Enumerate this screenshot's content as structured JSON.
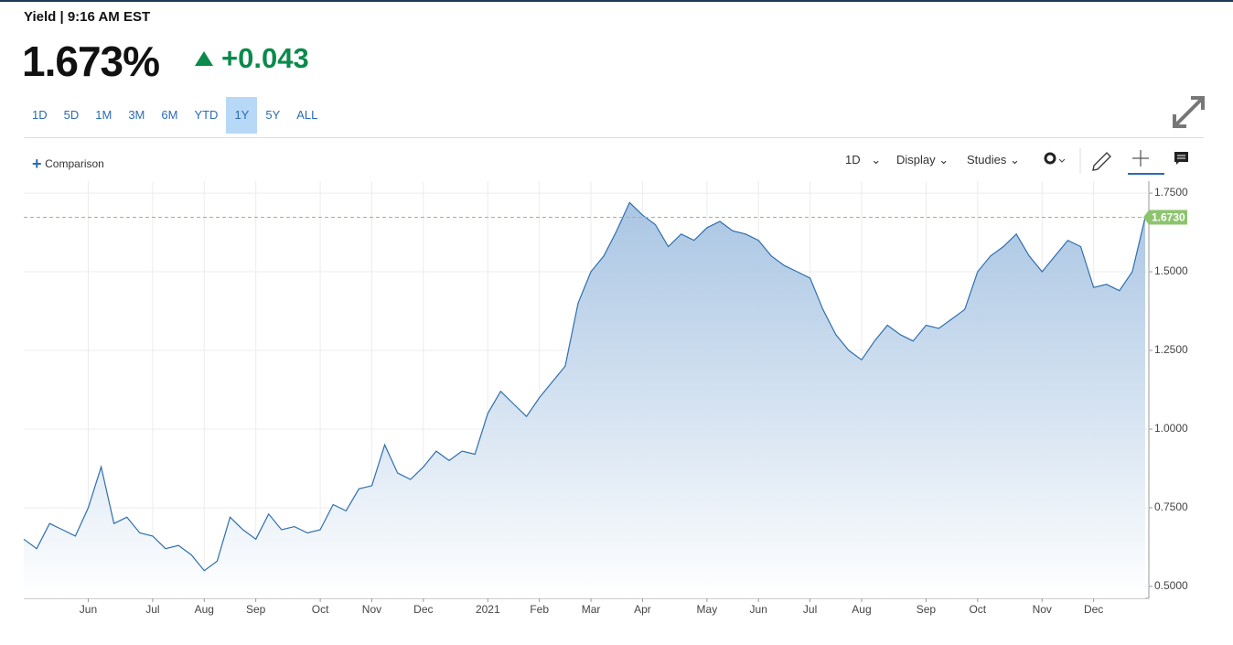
{
  "header": {
    "title": "Yield | 9:16 AM EST",
    "price": "1.673%",
    "change": "+0.043"
  },
  "ranges": [
    "1D",
    "5D",
    "1M",
    "3M",
    "6M",
    "YTD",
    "1Y",
    "5Y",
    "ALL"
  ],
  "active_range": "1Y",
  "toolbar": {
    "comparison": "Comparison",
    "interval": "1D",
    "display": "Display",
    "studies": "Studies"
  },
  "chart_data": {
    "type": "area",
    "color": "#2e6fae",
    "fill_color": "#a6c3e2",
    "categories": [
      null,
      null,
      null,
      null,
      null,
      "Jun",
      null,
      null,
      null,
      null,
      "Jul",
      null,
      null,
      null,
      "Aug",
      null,
      null,
      null,
      "Sep",
      null,
      null,
      null,
      null,
      "Oct",
      null,
      null,
      null,
      "Nov",
      null,
      null,
      null,
      "Dec",
      null,
      null,
      null,
      null,
      "2021",
      null,
      null,
      null,
      "Feb",
      null,
      null,
      null,
      "Mar",
      null,
      null,
      null,
      "Apr",
      null,
      null,
      null,
      null,
      "May",
      null,
      null,
      null,
      "Jun",
      null,
      null,
      null,
      "Jul",
      null,
      null,
      null,
      "Aug",
      null,
      null,
      null,
      null,
      "Sep",
      null,
      null,
      null,
      "Oct",
      null,
      null,
      null,
      null,
      "Nov",
      null,
      null,
      null,
      "Dec",
      null,
      null,
      null,
      null
    ],
    "values": [
      0.65,
      0.62,
      0.7,
      0.68,
      0.66,
      0.75,
      0.88,
      0.7,
      0.72,
      0.67,
      0.66,
      0.62,
      0.63,
      0.6,
      0.55,
      0.58,
      0.72,
      0.68,
      0.65,
      0.73,
      0.68,
      0.69,
      0.67,
      0.68,
      0.76,
      0.74,
      0.81,
      0.82,
      0.95,
      0.86,
      0.84,
      0.88,
      0.93,
      0.9,
      0.93,
      0.92,
      1.05,
      1.12,
      1.08,
      1.04,
      1.1,
      1.15,
      1.2,
      1.4,
      1.5,
      1.55,
      1.63,
      1.72,
      1.68,
      1.65,
      1.58,
      1.62,
      1.6,
      1.64,
      1.66,
      1.63,
      1.62,
      1.6,
      1.55,
      1.52,
      1.5,
      1.48,
      1.38,
      1.3,
      1.25,
      1.22,
      1.28,
      1.33,
      1.3,
      1.28,
      1.33,
      1.32,
      1.35,
      1.38,
      1.5,
      1.55,
      1.58,
      1.62,
      1.55,
      1.5,
      1.55,
      1.6,
      1.58,
      1.45,
      1.46,
      1.44,
      1.5,
      1.673
    ],
    "last_label": "1.6730",
    "last_color": "#8cc46e",
    "ylim": [
      0.462,
      1.788
    ],
    "yticks": [
      {
        "value": 0.5,
        "label": "0.5000"
      },
      {
        "value": 0.75,
        "label": "0.7500"
      },
      {
        "value": 1.0,
        "label": "1.0000"
      },
      {
        "value": 1.25,
        "label": "1.2500"
      },
      {
        "value": 1.5,
        "label": "1.5000"
      },
      {
        "value": 1.75,
        "label": "1.7500"
      }
    ],
    "grid": true
  }
}
